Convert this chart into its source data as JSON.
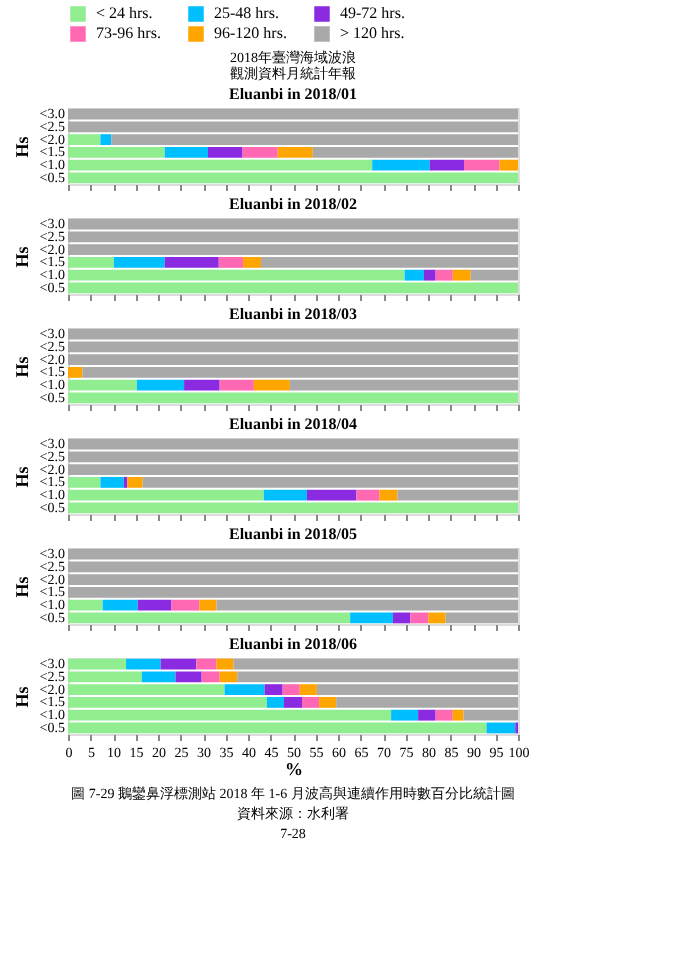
{
  "chart_data": [
    {
      "type": "bar",
      "orientation": "horizontal",
      "stacked": true,
      "title": "Eluanbi in 2018/01",
      "ylabel": "Hs",
      "legend": "top",
      "tick_labels": "y",
      "xlim": [
        0,
        100
      ],
      "xticks": [
        0,
        5,
        10,
        15,
        20,
        25,
        30,
        35,
        40,
        45,
        50,
        55,
        60,
        65,
        70,
        75,
        80,
        85,
        90,
        95,
        100
      ],
      "annotations": [
        "2018年臺灣海域波浪",
        "觀測資料月統計年報"
      ],
      "categories": [
        "<3.0",
        "<2.5",
        "<2.0",
        "<1.5",
        "<1.0",
        "<0.5"
      ],
      "series": [
        {
          "name": "< 24 hrs.",
          "color": "#90ee90",
          "values": [
            null,
            null,
            7.2,
            21.5,
            67.6,
            100
          ]
        },
        {
          "name": "25-48 hrs.",
          "color": "#00bfff",
          "values": [
            null,
            null,
            2.4,
            9.6,
            12.8,
            null
          ]
        },
        {
          "name": "49-72 hrs.",
          "color": "#8a2be2",
          "values": [
            null,
            null,
            null,
            7.7,
            7.6,
            null
          ]
        },
        {
          "name": "73-96 hrs.",
          "color": "#ff69b4",
          "values": [
            null,
            null,
            null,
            7.8,
            7.9,
            null
          ]
        },
        {
          "name": "96-120 hrs.",
          "color": "#ffa500",
          "values": [
            null,
            null,
            null,
            7.8,
            4.1,
            null
          ]
        },
        {
          "name": "> 120 hrs.",
          "color": "#a9a9a9",
          "values": [
            100,
            100,
            90.4,
            45.6,
            null,
            null
          ]
        }
      ]
    },
    {
      "type": "bar",
      "orientation": "horizontal",
      "stacked": true,
      "title": "Eluanbi in 2018/02",
      "ylabel": "Hs",
      "tick_labels": "y",
      "xlim": [
        0,
        100
      ],
      "xticks": [
        0,
        5,
        10,
        15,
        20,
        25,
        30,
        35,
        40,
        45,
        50,
        55,
        60,
        65,
        70,
        75,
        80,
        85,
        90,
        95,
        100
      ],
      "categories": [
        "<3.0",
        "<2.5",
        "<2.0",
        "<1.5",
        "<1.0",
        "<0.5"
      ],
      "series": [
        {
          "name": "< 24 hrs.",
          "color": "#90ee90",
          "values": [
            null,
            null,
            null,
            10.2,
            74.8,
            100
          ]
        },
        {
          "name": "25-48 hrs.",
          "color": "#00bfff",
          "values": [
            null,
            null,
            null,
            11.3,
            4.3,
            null
          ]
        },
        {
          "name": "49-72 hrs.",
          "color": "#8a2be2",
          "values": [
            null,
            null,
            null,
            12.0,
            2.6,
            null
          ]
        },
        {
          "name": "73-96 hrs.",
          "color": "#ff69b4",
          "values": [
            null,
            null,
            null,
            5.4,
            3.8,
            null
          ]
        },
        {
          "name": "96-120 hrs.",
          "color": "#ffa500",
          "values": [
            null,
            null,
            null,
            4.0,
            4.0,
            null
          ]
        },
        {
          "name": "> 120 hrs.",
          "color": "#a9a9a9",
          "values": [
            100,
            100,
            100,
            57.1,
            10.5,
            null
          ]
        }
      ]
    },
    {
      "type": "bar",
      "orientation": "horizontal",
      "stacked": true,
      "title": "Eluanbi in 2018/03",
      "ylabel": "Hs",
      "tick_labels": "y",
      "xlim": [
        0,
        100
      ],
      "xticks": [
        0,
        5,
        10,
        15,
        20,
        25,
        30,
        35,
        40,
        45,
        50,
        55,
        60,
        65,
        70,
        75,
        80,
        85,
        90,
        95,
        100
      ],
      "categories": [
        "<3.0",
        "<2.5",
        "<2.0",
        "<1.5",
        "<1.0",
        "<0.5"
      ],
      "series": [
        {
          "name": "< 24 hrs.",
          "color": "#90ee90",
          "values": [
            null,
            null,
            null,
            null,
            15.3,
            100
          ]
        },
        {
          "name": "25-48 hrs.",
          "color": "#00bfff",
          "values": [
            null,
            null,
            null,
            null,
            10.5,
            null
          ]
        },
        {
          "name": "49-72 hrs.",
          "color": "#8a2be2",
          "values": [
            null,
            null,
            null,
            null,
            7.9,
            null
          ]
        },
        {
          "name": "73-96 hrs.",
          "color": "#ff69b4",
          "values": [
            null,
            null,
            null,
            null,
            7.6,
            null
          ]
        },
        {
          "name": "96-120 hrs.",
          "color": "#ffa500",
          "values": [
            null,
            null,
            null,
            3.2,
            8.0,
            null
          ]
        },
        {
          "name": "> 120 hrs.",
          "color": "#a9a9a9",
          "values": [
            100,
            100,
            100,
            96.8,
            50.7,
            null
          ]
        }
      ]
    },
    {
      "type": "bar",
      "orientation": "horizontal",
      "stacked": true,
      "title": "Eluanbi in 2018/04",
      "ylabel": "Hs",
      "tick_labels": "y",
      "xlim": [
        0,
        100
      ],
      "xticks": [
        0,
        5,
        10,
        15,
        20,
        25,
        30,
        35,
        40,
        45,
        50,
        55,
        60,
        65,
        70,
        75,
        80,
        85,
        90,
        95,
        100
      ],
      "categories": [
        "<3.0",
        "<2.5",
        "<2.0",
        "<1.5",
        "<1.0",
        "<0.5"
      ],
      "series": [
        {
          "name": "< 24 hrs.",
          "color": "#90ee90",
          "values": [
            null,
            null,
            null,
            7.2,
            43.5,
            100
          ]
        },
        {
          "name": "25-48 hrs.",
          "color": "#00bfff",
          "values": [
            null,
            null,
            null,
            5.2,
            9.6,
            null
          ]
        },
        {
          "name": "49-72 hrs.",
          "color": "#8a2be2",
          "values": [
            null,
            null,
            null,
            0.8,
            11.0,
            null
          ]
        },
        {
          "name": "73-96 hrs.",
          "color": "#ff69b4",
          "values": [
            null,
            null,
            null,
            null,
            5.1,
            null
          ]
        },
        {
          "name": "96-120 hrs.",
          "color": "#ffa500",
          "values": [
            null,
            null,
            null,
            3.4,
            4.0,
            null
          ]
        },
        {
          "name": "> 120 hrs.",
          "color": "#a9a9a9",
          "values": [
            100,
            100,
            100,
            83.4,
            26.8,
            null
          ]
        }
      ]
    },
    {
      "type": "bar",
      "orientation": "horizontal",
      "stacked": true,
      "title": "Eluanbi in 2018/05",
      "ylabel": "Hs",
      "tick_labels": "y",
      "xlim": [
        0,
        100
      ],
      "xticks": [
        0,
        5,
        10,
        15,
        20,
        25,
        30,
        35,
        40,
        45,
        50,
        55,
        60,
        65,
        70,
        75,
        80,
        85,
        90,
        95,
        100
      ],
      "categories": [
        "<3.0",
        "<2.5",
        "<2.0",
        "<1.5",
        "<1.0",
        "<0.5"
      ],
      "series": [
        {
          "name": "< 24 hrs.",
          "color": "#90ee90",
          "values": [
            null,
            null,
            null,
            null,
            7.7,
            62.7
          ]
        },
        {
          "name": "25-48 hrs.",
          "color": "#00bfff",
          "values": [
            null,
            null,
            null,
            null,
            7.8,
            9.5
          ]
        },
        {
          "name": "49-72 hrs.",
          "color": "#8a2be2",
          "values": [
            null,
            null,
            null,
            null,
            7.5,
            3.9
          ]
        },
        {
          "name": "73-96 hrs.",
          "color": "#ff69b4",
          "values": [
            null,
            null,
            null,
            null,
            6.2,
            4.0
          ]
        },
        {
          "name": "96-120 hrs.",
          "color": "#ffa500",
          "values": [
            null,
            null,
            null,
            null,
            3.8,
            3.8
          ]
        },
        {
          "name": "> 120 hrs.",
          "color": "#a9a9a9",
          "values": [
            100,
            100,
            100,
            100,
            67.0,
            16.1
          ]
        }
      ]
    },
    {
      "type": "bar",
      "orientation": "horizontal",
      "stacked": true,
      "title": "Eluanbi in 2018/06",
      "ylabel": "Hs",
      "xlabel": "%",
      "xlim": [
        0,
        100
      ],
      "xticks": [
        0,
        5,
        10,
        15,
        20,
        25,
        30,
        35,
        40,
        45,
        50,
        55,
        60,
        65,
        70,
        75,
        80,
        85,
        90,
        95,
        100
      ],
      "annotations": [
        "圖 7-29 鵝鑾鼻浮標測站 2018 年 1-6 月波高與連續作用時數百分比統計圖",
        "資料來源：水利署",
        "7-28"
      ],
      "categories": [
        "<3.0",
        "<2.5",
        "<2.0",
        "<1.5",
        "<1.0",
        "<0.5"
      ],
      "series": [
        {
          "name": "< 24 hrs.",
          "color": "#90ee90",
          "values": [
            12.9,
            16.4,
            34.8,
            44.2,
            71.8,
            93.0
          ]
        },
        {
          "name": "25-48 hrs.",
          "color": "#00bfff",
          "values": [
            7.7,
            7.5,
            8.9,
            3.8,
            6.0,
            6.4
          ]
        },
        {
          "name": "49-72 hrs.",
          "color": "#8a2be2",
          "values": [
            7.9,
            5.8,
            4.0,
            4.0,
            3.9,
            0.6
          ]
        },
        {
          "name": "73-96 hrs.",
          "color": "#ff69b4",
          "values": [
            4.5,
            4.0,
            3.8,
            3.8,
            3.8,
            null
          ]
        },
        {
          "name": "96-120 hrs.",
          "color": "#ffa500",
          "values": [
            3.8,
            3.9,
            3.8,
            3.8,
            2.4,
            null
          ]
        },
        {
          "name": "> 120 hrs.",
          "color": "#a9a9a9",
          "values": [
            63.2,
            62.4,
            44.7,
            40.4,
            12.1,
            null
          ]
        }
      ]
    }
  ]
}
